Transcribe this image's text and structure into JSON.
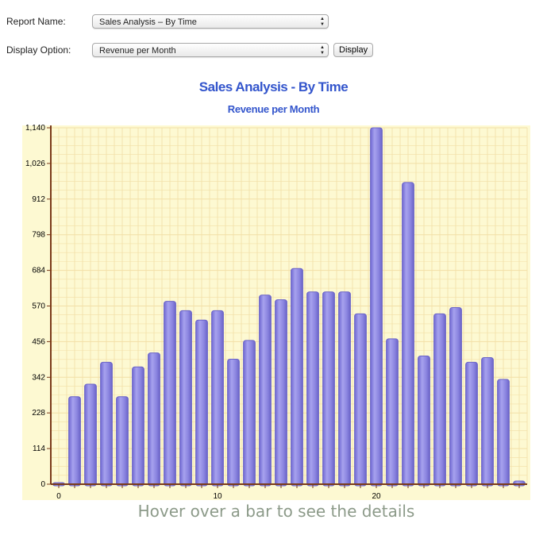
{
  "form": {
    "report_name_label": "Report Name:",
    "report_name_value": "Sales Analysis – By Time",
    "display_option_label": "Display Option:",
    "display_option_value": "Revenue per Month",
    "display_button_label": "Display"
  },
  "chart_data": {
    "type": "bar",
    "title": "Sales Analysis - By Time",
    "subtitle": "Revenue per Month",
    "xlabel": "",
    "ylabel": "",
    "x": [
      0,
      1,
      2,
      3,
      4,
      5,
      6,
      7,
      8,
      9,
      10,
      11,
      12,
      13,
      14,
      15,
      16,
      17,
      18,
      19,
      20,
      21,
      22,
      23,
      24,
      25,
      26,
      27,
      28,
      29
    ],
    "values": [
      0,
      280,
      320,
      390,
      280,
      375,
      420,
      585,
      555,
      525,
      555,
      400,
      460,
      605,
      590,
      690,
      615,
      615,
      615,
      545,
      1140,
      465,
      965,
      410,
      545,
      565,
      390,
      405,
      335,
      10
    ],
    "ylim": [
      0,
      1140
    ],
    "y_ticks": [
      "0",
      "114",
      "228",
      "342",
      "456",
      "570",
      "684",
      "798",
      "912",
      "1,026",
      "1,140"
    ],
    "x_ticks": [
      "0",
      "10",
      "20"
    ],
    "grid": true,
    "legend": "none",
    "colors": {
      "plot_bg": "#fdf9d2",
      "grid": "#f2dfa6",
      "bar": "#8b85e0",
      "bar_edge": "#6a63c8",
      "axis": "#7a3a1a"
    }
  },
  "footer": {
    "hover_note": "Hover over a bar to see the details"
  }
}
